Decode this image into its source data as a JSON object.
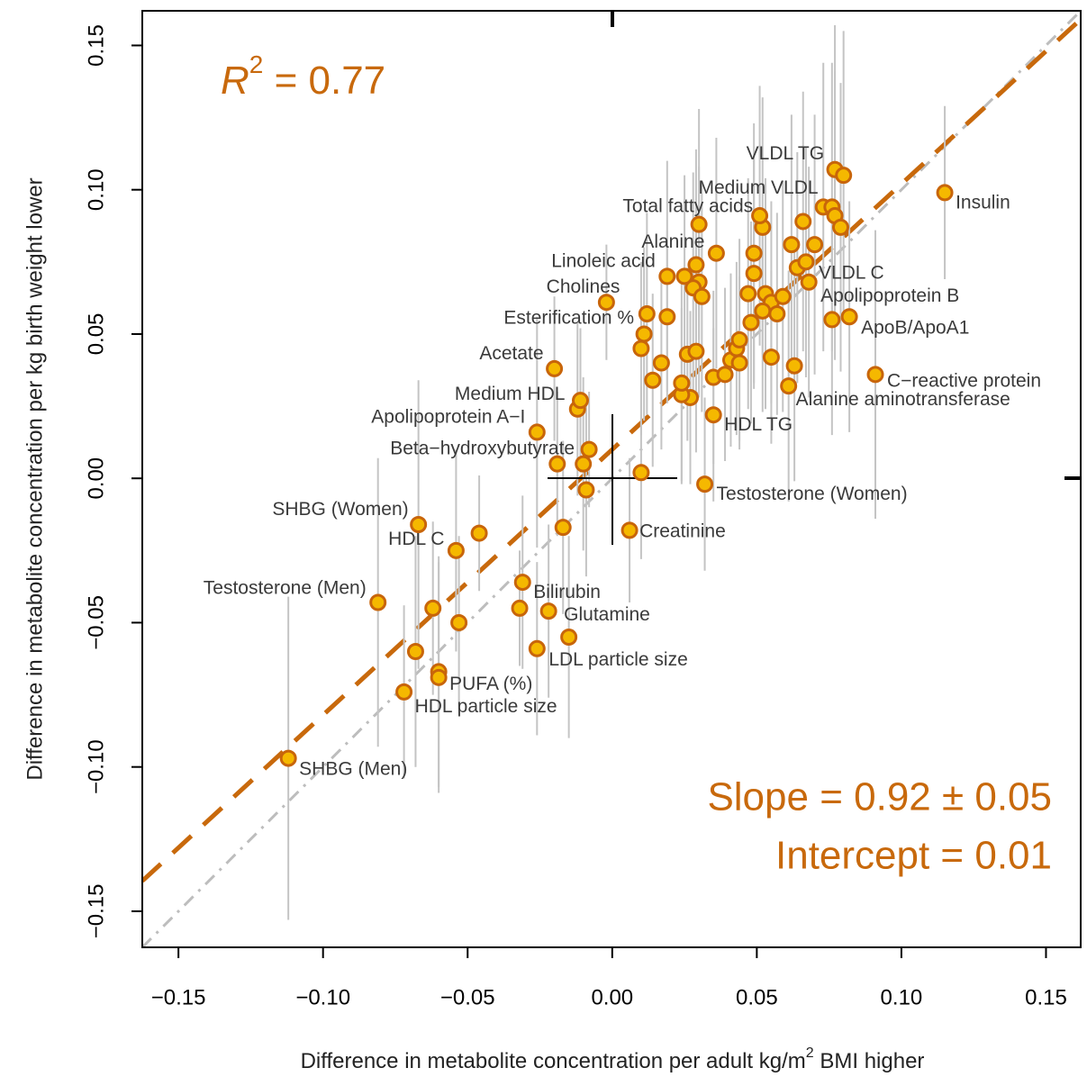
{
  "chart_data": {
    "type": "scatter",
    "x_label": "Difference in metabolite concentration per adult kg/m",
    "x_label_sup": "2",
    "x_label_end": " BMI higher",
    "y_label": "Difference in metabolite concentration per kg birth weight lower",
    "r2_symbol": "R",
    "r2_sup": "2",
    "r2_text": " = 0.77",
    "slope_text": "Slope = 0.92 ± 0.05",
    "intercept_text": "Intercept = 0.01",
    "fit": {
      "slope": 0.92,
      "intercept": 0.01,
      "color": "#c8690c"
    },
    "point_color": "#f5b800",
    "point_edge": "#c8650a",
    "xlim": [
      -0.1625,
      0.162
    ],
    "ylim": [
      -0.1625,
      0.162
    ],
    "xticks": [
      {
        "value": -0.15,
        "label": "−0.15"
      },
      {
        "value": -0.1,
        "label": "−0.10"
      },
      {
        "value": -0.05,
        "label": "−0.05"
      },
      {
        "value": 0,
        "label": "0.00"
      },
      0.05,
      {
        "value": 0.1,
        "label": "0.10"
      },
      0.15
    ],
    "yticks": [
      {
        "value": -0.15,
        "label": "−0.15"
      },
      {
        "value": -0.1,
        "label": "−0.10"
      },
      {
        "value": -0.05,
        "label": "−0.05"
      },
      {
        "value": 0,
        "label": "0.00"
      },
      0.05,
      {
        "value": 0.1,
        "label": "0.10"
      },
      0.15
    ],
    "labels": [
      "SHBG (Men)",
      "HDL particle size",
      null,
      "PUFA (%)",
      null,
      "Testosterone (Men)",
      null,
      null,
      "HDL C",
      "SHBG (Women)",
      null,
      "Bilirubin",
      null,
      "Glutamine",
      null,
      "LDL particle size",
      null,
      null,
      null,
      null,
      "Beta−hydroxybutyrate",
      "Apolipoprotein A−I",
      null,
      "Medium HDL",
      "Acetate",
      "Creatinine",
      null,
      "Testosterone (Women)",
      "HDL TG",
      null,
      null,
      null,
      null,
      null,
      null,
      "Esterification %",
      null,
      null,
      "Cholines",
      "Linoleic acid",
      "Total fatty acids",
      "Alanine",
      null,
      null,
      null,
      null,
      null,
      null,
      null,
      null,
      null,
      null,
      null,
      null,
      null,
      null,
      null,
      null,
      null,
      null,
      "Medium VLDL",
      null,
      null,
      null,
      null,
      null,
      null,
      null,
      null,
      null,
      "VLDL C",
      null,
      "Apolipoprotein B",
      null,
      "Alanine aminotransferase",
      null,
      null,
      null,
      null,
      "VLDL TG",
      null,
      null,
      "ApoB/ApoA1",
      "C−reactive protein",
      "Insulin"
    ],
    "x": [
      -0.112,
      -0.072,
      -0.06,
      -0.06,
      -0.068,
      -0.081,
      -0.062,
      -0.053,
      -0.054,
      -0.067,
      -0.046,
      -0.031,
      -0.032,
      -0.022,
      -0.015,
      -0.026,
      -0.017,
      -0.009,
      -0.019,
      -0.01,
      -0.008,
      -0.026,
      -0.012,
      -0.011,
      -0.02,
      0.006,
      0.01,
      0.032,
      0.035,
      0.027,
      0.024,
      0.024,
      0.014,
      0.017,
      0.01,
      0.011,
      0.012,
      0.019,
      -0.002,
      0.019,
      0.03,
      0.036,
      0.025,
      0.029,
      0.03,
      0.028,
      0.031,
      0.026,
      0.029,
      0.035,
      0.039,
      0.041,
      0.043,
      0.044,
      0.044,
      0.048,
      0.047,
      0.049,
      0.049,
      0.052,
      0.051,
      0.053,
      0.055,
      0.057,
      0.052,
      0.059,
      0.055,
      0.062,
      0.064,
      0.066,
      0.067,
      0.07,
      0.068,
      0.063,
      0.061,
      0.073,
      0.076,
      0.077,
      0.079,
      0.077,
      0.08,
      0.076,
      0.082,
      0.091,
      0.115
    ],
    "y": [
      -0.097,
      -0.074,
      -0.067,
      -0.069,
      -0.06,
      -0.043,
      -0.045,
      -0.05,
      -0.025,
      -0.016,
      -0.019,
      -0.036,
      -0.045,
      -0.046,
      -0.055,
      -0.059,
      -0.017,
      -0.004,
      0.005,
      0.005,
      0.01,
      0.016,
      0.024,
      0.027,
      0.038,
      -0.018,
      0.002,
      -0.002,
      0.022,
      0.028,
      0.029,
      0.033,
      0.034,
      0.04,
      0.045,
      0.05,
      0.057,
      0.056,
      0.061,
      0.07,
      0.088,
      0.078,
      0.07,
      0.074,
      0.068,
      0.066,
      0.063,
      0.043,
      0.044,
      0.035,
      0.036,
      0.041,
      0.045,
      0.048,
      0.04,
      0.054,
      0.064,
      0.071,
      0.078,
      0.087,
      0.091,
      0.064,
      0.061,
      0.057,
      0.058,
      0.063,
      0.042,
      0.081,
      0.073,
      0.089,
      0.075,
      0.081,
      0.068,
      0.039,
      0.032,
      0.094,
      0.094,
      0.091,
      0.087,
      0.107,
      0.105,
      0.055,
      0.056,
      0.036,
      0.099
    ],
    "yerr": [
      0.056,
      0.03,
      0.04,
      0.04,
      0.04,
      0.05,
      0.03,
      0.03,
      0.035,
      0.05,
      0.02,
      0.03,
      0.02,
      0.03,
      0.035,
      0.03,
      0.03,
      0.03,
      0.025,
      0.03,
      0.02,
      0.04,
      0.03,
      0.025,
      0.025,
      0.025,
      0.03,
      0.03,
      0.03,
      0.03,
      0.03,
      0.035,
      0.03,
      0.03,
      0.03,
      0.03,
      0.035,
      0.03,
      0.02,
      0.04,
      0.04,
      0.04,
      0.035,
      0.04,
      0.04,
      0.04,
      0.04,
      0.03,
      0.035,
      0.03,
      0.03,
      0.03,
      0.03,
      0.035,
      0.03,
      0.035,
      0.04,
      0.04,
      0.045,
      0.045,
      0.045,
      0.04,
      0.035,
      0.035,
      0.035,
      0.04,
      0.03,
      0.045,
      0.04,
      0.045,
      0.04,
      0.045,
      0.04,
      0.04,
      0.04,
      0.05,
      0.05,
      0.05,
      0.05,
      0.05,
      0.05,
      0.04,
      0.04,
      0.05,
      0.03
    ]
  }
}
